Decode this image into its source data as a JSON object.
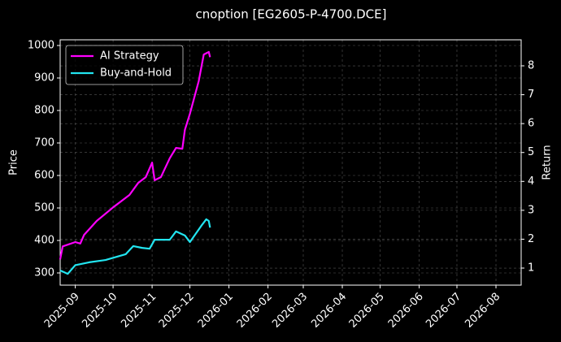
{
  "chart_data": {
    "type": "line",
    "title": "cnoption [EG2605-P-4700.DCE]",
    "ylabel": "Price",
    "y2label": "Return",
    "xlim": [
      "2025-08-20",
      "2026-08-21"
    ],
    "xticks": [
      "2025-09",
      "2025-10",
      "2025-11",
      "2025-12",
      "2026-01",
      "2026-02",
      "2026-03",
      "2026-04",
      "2026-05",
      "2026-06",
      "2026-07",
      "2026-08"
    ],
    "ylim": [
      262.5,
      1017.5
    ],
    "yticks": [
      300,
      400,
      500,
      600,
      700,
      800,
      900,
      1000
    ],
    "y2lim": [
      0.41,
      8.9
    ],
    "y2ticks": [
      1,
      2,
      3,
      4,
      5,
      6,
      7,
      8
    ],
    "grid": true,
    "legend": "upper left",
    "series": [
      {
        "name": "AI Strategy",
        "color": "#ff00ff",
        "axis": "y2",
        "x": [
          "2025-08-20",
          "2025-08-22",
          "2025-09-01",
          "2025-09-05",
          "2025-09-08",
          "2025-09-18",
          "2025-10-01",
          "2025-10-14",
          "2025-10-21",
          "2025-10-27",
          "2025-11-01",
          "2025-11-03",
          "2025-11-08",
          "2025-11-15",
          "2025-11-20",
          "2025-11-25",
          "2025-11-27",
          "2025-12-01",
          "2025-12-08",
          "2025-12-12",
          "2025-12-16",
          "2025-12-17"
        ],
        "values": [
          1.3,
          1.75,
          1.9,
          1.85,
          2.15,
          2.63,
          3.1,
          3.53,
          3.95,
          4.15,
          4.65,
          4.04,
          4.15,
          4.8,
          5.16,
          5.13,
          5.78,
          6.34,
          7.47,
          8.39,
          8.48,
          8.3
        ]
      },
      {
        "name": "Buy-and-Hold",
        "color": "#22e5f0",
        "axis": "y2",
        "x": [
          "2025-08-20",
          "2025-08-26",
          "2025-09-01",
          "2025-09-12",
          "2025-09-25",
          "2025-10-11",
          "2025-10-17",
          "2025-10-24",
          "2025-10-30",
          "2025-11-03",
          "2025-11-15",
          "2025-11-20",
          "2025-11-27",
          "2025-12-01",
          "2025-12-10",
          "2025-12-14",
          "2025-12-16",
          "2025-12-17"
        ],
        "values": [
          0.92,
          0.8,
          1.1,
          1.2,
          1.28,
          1.48,
          1.76,
          1.7,
          1.67,
          1.98,
          1.98,
          2.27,
          2.13,
          1.9,
          2.46,
          2.69,
          2.63,
          2.4
        ]
      }
    ]
  }
}
